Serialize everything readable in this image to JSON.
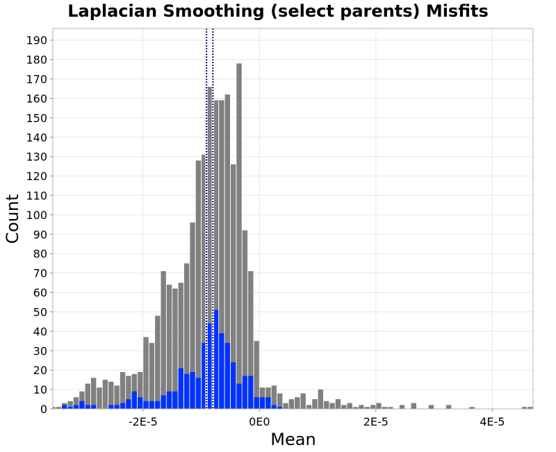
{
  "chart_data": {
    "type": "bar",
    "title": "Laplacian Smoothing (select parents) Misfits",
    "xlabel": "Mean",
    "ylabel": "Count",
    "xlim": [
      -3.55e-05,
      4.7e-05
    ],
    "ylim": [
      0,
      196
    ],
    "bin_width": 1e-06,
    "grid": true,
    "x_ticks": [
      {
        "value": -2e-05,
        "label": "-2E-5"
      },
      {
        "value": 0,
        "label": "0E0"
      },
      {
        "value": 2e-05,
        "label": "2E-5"
      },
      {
        "value": 4e-05,
        "label": "4E-5"
      }
    ],
    "y_ticks": [
      0,
      10,
      20,
      30,
      40,
      50,
      60,
      70,
      80,
      90,
      100,
      110,
      120,
      130,
      140,
      150,
      160,
      170,
      180,
      190
    ],
    "y_tick_labels": [
      "0",
      "10",
      "20",
      "30",
      "40",
      "50",
      "60",
      "70",
      "80",
      "90",
      "100",
      "110",
      "120",
      "130",
      "140",
      "150",
      "160",
      "170",
      "180",
      "190"
    ],
    "series": [
      {
        "color": "#808080",
        "x": [
          -3.55e-05,
          -3.45e-05,
          -3.35e-05,
          -3.25e-05,
          -3.15e-05,
          -3.05e-05,
          -2.95e-05,
          -2.85e-05,
          -2.75e-05,
          -2.65e-05,
          -2.55e-05,
          -2.45e-05,
          -2.35e-05,
          -2.25e-05,
          -2.15e-05,
          -2.05e-05,
          -1.95e-05,
          -1.85e-05,
          -1.75e-05,
          -1.65e-05,
          -1.55e-05,
          -1.45e-05,
          -1.35e-05,
          -1.25e-05,
          -1.15e-05,
          -1.05e-05,
          -9.5e-06,
          -8.5e-06,
          -7.5e-06,
          -6.5e-06,
          -5.5e-06,
          -4.5e-06,
          -3.5e-06,
          -2.5e-06,
          -1.5e-06,
          -5e-07,
          5e-07,
          1.5e-06,
          2.5e-06,
          3.5e-06,
          4.5e-06,
          5.5e-06,
          6.5e-06,
          7.5e-06,
          8.5e-06,
          9.5e-06,
          1.05e-05,
          1.15e-05,
          1.25e-05,
          1.35e-05,
          1.45e-05,
          1.55e-05,
          1.65e-05,
          1.75e-05,
          1.85e-05,
          1.95e-05,
          2.05e-05,
          2.15e-05,
          2.25e-05,
          2.45e-05,
          2.65e-05,
          2.95e-05,
          3.25e-05,
          3.65e-05,
          4.55e-05,
          4.65e-05
        ],
        "values": [
          1,
          1,
          3,
          4,
          6,
          9,
          13,
          16,
          11,
          15,
          14,
          12,
          19,
          17,
          18,
          19,
          37,
          34,
          48,
          71,
          64,
          62,
          65,
          75,
          96,
          128,
          131,
          166,
          159,
          159,
          162,
          126,
          178,
          92,
          71,
          35,
          11,
          11,
          12,
          8,
          3,
          5,
          6,
          8,
          2,
          5,
          10,
          4,
          3,
          5,
          2,
          3,
          1,
          2,
          1,
          2,
          3,
          1,
          1,
          2,
          3,
          2,
          2,
          1,
          1,
          1
        ]
      },
      {
        "color": "#0033FF",
        "x": [
          -3.35e-05,
          -3.25e-05,
          -3.15e-05,
          -3.05e-05,
          -2.95e-05,
          -2.85e-05,
          -2.75e-05,
          -2.65e-05,
          -2.55e-05,
          -2.45e-05,
          -2.35e-05,
          -2.25e-05,
          -2.15e-05,
          -2.05e-05,
          -1.95e-05,
          -1.85e-05,
          -1.75e-05,
          -1.65e-05,
          -1.55e-05,
          -1.45e-05,
          -1.35e-05,
          -1.25e-05,
          -1.15e-05,
          -1.05e-05,
          -9.5e-06,
          -8.5e-06,
          -7.5e-06,
          -6.5e-06,
          -5.5e-06,
          -4.5e-06,
          -3.5e-06,
          -2.5e-06,
          -1.5e-06,
          -5e-07,
          5e-07,
          1.5e-06,
          2.5e-06,
          3.5e-06
        ],
        "values": [
          2,
          1,
          2,
          4,
          2,
          2,
          0,
          0,
          2,
          2,
          3,
          5,
          9,
          6,
          4,
          4,
          4,
          7,
          9,
          9,
          21,
          18,
          19,
          16,
          34,
          44,
          51,
          39,
          34,
          24,
          13,
          17,
          17,
          6,
          6,
          6,
          2,
          1
        ]
      }
    ],
    "vlines": [
      {
        "x": -9.1e-06,
        "color": "#1a237e",
        "style": "dotted"
      },
      {
        "x": -8e-06,
        "color": "#1a237e",
        "style": "dotted"
      }
    ],
    "colors": {
      "gray": "#808080",
      "blue": "#0033FF",
      "line": "#1a237e",
      "grid": "#e6e6e6",
      "frame": "#b0b0b0"
    }
  }
}
